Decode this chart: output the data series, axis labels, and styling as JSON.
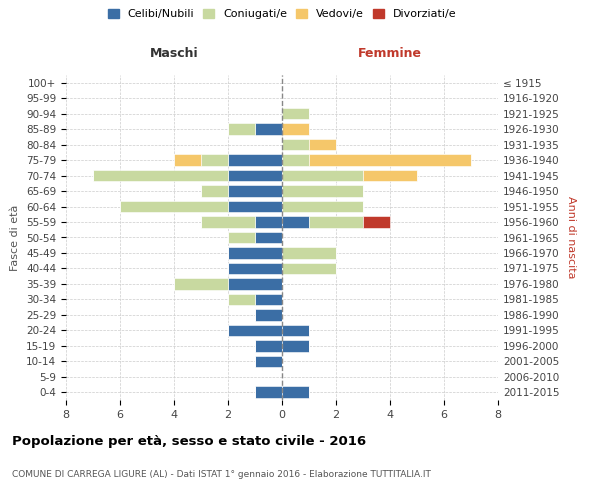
{
  "age_groups": [
    "0-4",
    "5-9",
    "10-14",
    "15-19",
    "20-24",
    "25-29",
    "30-34",
    "35-39",
    "40-44",
    "45-49",
    "50-54",
    "55-59",
    "60-64",
    "65-69",
    "70-74",
    "75-79",
    "80-84",
    "85-89",
    "90-94",
    "95-99",
    "100+"
  ],
  "birth_years": [
    "2011-2015",
    "2006-2010",
    "2001-2005",
    "1996-2000",
    "1991-1995",
    "1986-1990",
    "1981-1985",
    "1976-1980",
    "1971-1975",
    "1966-1970",
    "1961-1965",
    "1956-1960",
    "1951-1955",
    "1946-1950",
    "1941-1945",
    "1936-1940",
    "1931-1935",
    "1926-1930",
    "1921-1925",
    "1916-1920",
    "≤ 1915"
  ],
  "males": {
    "celibi": [
      1,
      0,
      1,
      1,
      2,
      1,
      1,
      2,
      2,
      2,
      1,
      1,
      2,
      2,
      2,
      2,
      0,
      1,
      0,
      0,
      0
    ],
    "coniugati": [
      0,
      0,
      0,
      0,
      0,
      0,
      1,
      2,
      0,
      0,
      1,
      2,
      4,
      1,
      5,
      1,
      0,
      1,
      0,
      0,
      0
    ],
    "vedovi": [
      0,
      0,
      0,
      0,
      0,
      0,
      0,
      0,
      0,
      0,
      0,
      0,
      0,
      0,
      0,
      1,
      0,
      0,
      0,
      0,
      0
    ],
    "divorziati": [
      0,
      0,
      0,
      0,
      0,
      0,
      0,
      0,
      0,
      0,
      0,
      0,
      0,
      0,
      0,
      0,
      0,
      0,
      0,
      0,
      0
    ]
  },
  "females": {
    "nubili": [
      1,
      0,
      0,
      1,
      1,
      0,
      0,
      0,
      0,
      0,
      0,
      1,
      0,
      0,
      0,
      0,
      0,
      0,
      0,
      0,
      0
    ],
    "coniugate": [
      0,
      0,
      0,
      0,
      0,
      0,
      0,
      0,
      2,
      2,
      0,
      2,
      3,
      3,
      3,
      1,
      1,
      0,
      1,
      0,
      0
    ],
    "vedove": [
      0,
      0,
      0,
      0,
      0,
      0,
      0,
      0,
      0,
      0,
      0,
      0,
      0,
      0,
      2,
      6,
      1,
      1,
      0,
      0,
      0
    ],
    "divorziate": [
      0,
      0,
      0,
      0,
      0,
      0,
      0,
      0,
      0,
      0,
      0,
      1,
      0,
      0,
      0,
      0,
      0,
      0,
      0,
      0,
      0
    ]
  },
  "color_celibi": "#3b6ea5",
  "color_coniugati": "#c8d9a0",
  "color_vedovi": "#f5c76a",
  "color_divorziati": "#c0392b",
  "xlim": 8,
  "title": "Popolazione per età, sesso e stato civile - 2016",
  "subtitle": "COMUNE DI CARREGA LIGURE (AL) - Dati ISTAT 1° gennaio 2016 - Elaborazione TUTTITALIA.IT",
  "ylabel_left": "Fasce di età",
  "ylabel_right": "Anni di nascita",
  "label_maschi": "Maschi",
  "label_femmine": "Femmine",
  "legend_celibi": "Celibi/Nubili",
  "legend_coniugati": "Coniugati/e",
  "legend_vedovi": "Vedovi/e",
  "legend_divorziati": "Divorziati/e"
}
